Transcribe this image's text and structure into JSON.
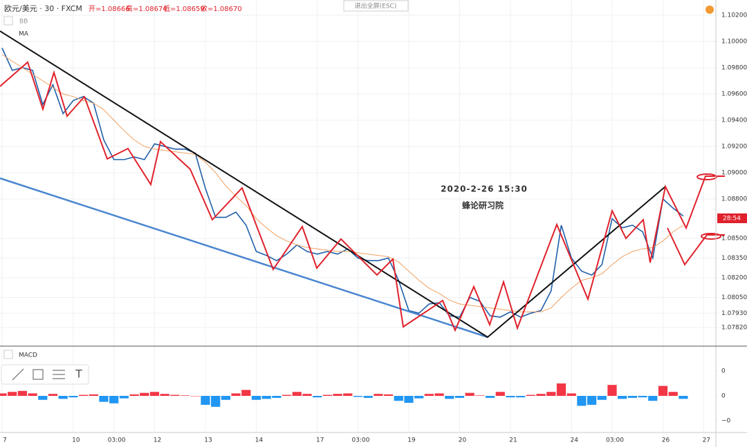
{
  "toolbar": {
    "exit_fullscreen": "退出全屏(ESC)"
  },
  "legend": {
    "symbol": "欧元/美元 · 30 · FXCM",
    "open": "开=1.08666",
    "high": "高=1.08674",
    "low": "低=1.08659",
    "close": "收=1.08670",
    "indicators": [
      "BB",
      "MA"
    ]
  },
  "annotations": {
    "timestamp": "2020-2-26 15:30",
    "watermark": "蜂论研习院",
    "countdown": "28:54"
  },
  "chart_data": [
    {
      "type": "line",
      "categories": [
        "7",
        null,
        null,
        null,
        null,
        null,
        null,
        "10",
        null,
        null,
        null,
        "03:00",
        null,
        null,
        null,
        "12",
        null,
        null,
        null,
        null,
        "13",
        null,
        null,
        null,
        null,
        "14",
        null,
        null,
        null,
        null,
        null,
        "17",
        null,
        null,
        null,
        "03:00",
        null,
        null,
        null,
        null,
        "19",
        null,
        null,
        null,
        null,
        "20",
        null,
        null,
        null,
        null,
        "21",
        null,
        null,
        null,
        null,
        null,
        "24",
        null,
        null,
        null,
        "03:00",
        null,
        null,
        null,
        null,
        "26",
        null,
        null,
        null,
        "27"
      ],
      "series": [
        {
          "color": "#1e5fa8",
          "values": [
            1.0995,
            1.0978,
            1.098,
            1.0978,
            1.0952,
            1.0967,
            1.0945,
            1.0955,
            1.0958,
            1.0953,
            1.0925,
            1.091,
            1.091,
            1.0912,
            1.091,
            1.0922,
            1.092,
            1.0918,
            1.0918,
            1.0915,
            1.0888,
            1.0866,
            1.0866,
            1.087,
            1.086,
            1.084,
            1.0837,
            1.0833,
            1.0838,
            1.0845,
            1.084,
            1.0838,
            1.084,
            1.0838,
            1.0842,
            1.0835,
            1.0833,
            1.0833,
            1.0835,
            1.0818,
            1.0795,
            1.0793,
            1.08,
            1.0801,
            1.0791,
            1.079,
            1.0805,
            1.0802,
            1.0791,
            1.079,
            1.0794,
            1.079,
            1.0793,
            1.0795,
            1.081,
            1.086,
            1.0835,
            1.0825,
            1.0822,
            1.083,
            1.0865,
            1.0858,
            1.086,
            1.0855,
            1.0835,
            1.088,
            1.0873,
            1.0867,
            null,
            null
          ]
        },
        {
          "color": "#f0a060",
          "values": [
            1.099,
            1.0985,
            1.098,
            1.0975,
            1.097,
            1.0965,
            1.096,
            1.0958,
            1.0955,
            1.0953,
            1.0948,
            1.094,
            1.0932,
            1.0925,
            1.092,
            1.0918,
            1.0917,
            1.0916,
            1.0915,
            1.0914,
            1.0908,
            1.09,
            1.089,
            1.0882,
            1.0875,
            1.0865,
            1.0858,
            1.0852,
            1.0848,
            1.0845,
            1.0843,
            1.0842,
            1.0841,
            1.084,
            1.084,
            1.0839,
            1.0838,
            1.0837,
            1.0836,
            1.0832,
            1.0825,
            1.0818,
            1.0812,
            1.0808,
            1.0803,
            1.08,
            1.0799,
            1.0798,
            1.0797,
            1.0796,
            1.0795,
            1.0794,
            1.0794,
            1.0794,
            1.0797,
            1.0805,
            1.0812,
            1.0818,
            1.082,
            1.0823,
            1.083,
            1.0836,
            1.084,
            1.0842,
            1.0843,
            1.0848,
            1.0855,
            1.086,
            null,
            null
          ]
        }
      ],
      "ylim": [
        1.07684,
        1.10316
      ],
      "yticks": [
        {
          "value": 1.102,
          "label": "1.10200"
        },
        {
          "value": 1.1,
          "label": "1.10000"
        },
        {
          "value": 1.098,
          "label": "1.09800"
        },
        {
          "value": 1.096,
          "label": "1.09600"
        },
        {
          "value": 1.094,
          "label": "1.09400"
        },
        {
          "value": 1.092,
          "label": "1.09200"
        },
        {
          "value": 1.09,
          "label": "1.09000"
        },
        {
          "value": 1.088,
          "label": "1.08800"
        },
        {
          "value": 1.085,
          "label": "1.08500"
        },
        {
          "value": 1.0835,
          "label": "1.08350"
        },
        {
          "value": 1.082,
          "label": "1.08200"
        },
        {
          "value": 1.0805,
          "label": "1.08050"
        },
        {
          "value": 1.0793,
          "label": "1.07930"
        },
        {
          "value": 1.0782,
          "label": "1.07820"
        }
      ],
      "grid": true
    },
    {
      "type": "bar",
      "title": "MACD",
      "values": [
        5e-05,
        8e-05,
        0.0001,
        5e-05,
        -8e-05,
        4e-05,
        -6e-05,
        -3e-05,
        2e-05,
        3e-05,
        -0.00012,
        -0.00015,
        -5e-05,
        3e-05,
        6e-05,
        8e-05,
        4e-05,
        2e-05,
        1e-05,
        0,
        -0.00018,
        -0.00022,
        -8e-05,
        5e-05,
        0.00012,
        -8e-05,
        -6e-05,
        -4e-05,
        2e-05,
        8e-05,
        4e-05,
        -3e-05,
        2e-05,
        4e-05,
        5e-05,
        -2e-05,
        -4e-05,
        4e-05,
        3e-05,
        -0.0001,
        -0.00014,
        -5e-05,
        4e-05,
        5e-05,
        -6e-05,
        -4e-05,
        6e-05,
        1e-05,
        -4e-05,
        8e-05,
        -3e-05,
        -3e-05,
        2e-05,
        4e-05,
        8e-05,
        0.00025,
        5e-05,
        -0.0002,
        -0.00018,
        -8e-05,
        0.00022,
        -6e-05,
        -4e-05,
        -3e-05,
        -0.0001,
        0.0002,
        8e-05,
        -6e-05,
        null,
        null
      ],
      "positive_color": "#f23645",
      "negative_color": "#2196f3",
      "ylim": [
        -0.000722,
        0.000972
      ],
      "yticks": [
        {
          "value": 0.0005,
          "label": "0"
        },
        {
          "value": 0,
          "label": "0"
        },
        {
          "value": -0.0005,
          "label": "−0"
        }
      ]
    }
  ]
}
